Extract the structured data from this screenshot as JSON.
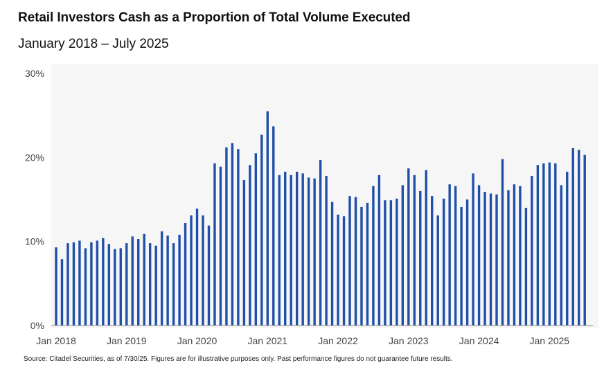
{
  "title": "Retail Investors Cash as a Proportion of Total Volume Executed",
  "subtitle": "January 2018 – July 2025",
  "source": "Source: Citadel Securities, as of 7/30/25. Figures are for illustrative purposes only. Past performance figures do not guarantee future results.",
  "colors": {
    "bar": "#1f4fa8",
    "plot_background": "#f6f6f6",
    "axis": "#888888",
    "tick_text": "#444444"
  },
  "chart_data": {
    "type": "bar",
    "xlabel": "",
    "ylabel": "",
    "ylim": [
      0,
      30
    ],
    "y_ticks": [
      0,
      10,
      20,
      30
    ],
    "y_tick_labels": [
      "0%",
      "10%",
      "20%",
      "30%"
    ],
    "x_tick_labels": [
      "Jan 2018",
      "Jan 2019",
      "Jan 2020",
      "Jan 2021",
      "Jan 2022",
      "Jan 2023",
      "Jan 2024",
      "Jan 2025"
    ],
    "grid": false,
    "legend": "none",
    "categories": [
      "2018-01",
      "2018-02",
      "2018-03",
      "2018-04",
      "2018-05",
      "2018-06",
      "2018-07",
      "2018-08",
      "2018-09",
      "2018-10",
      "2018-11",
      "2018-12",
      "2019-01",
      "2019-02",
      "2019-03",
      "2019-04",
      "2019-05",
      "2019-06",
      "2019-07",
      "2019-08",
      "2019-09",
      "2019-10",
      "2019-11",
      "2019-12",
      "2020-01",
      "2020-02",
      "2020-03",
      "2020-04",
      "2020-05",
      "2020-06",
      "2020-07",
      "2020-08",
      "2020-09",
      "2020-10",
      "2020-11",
      "2020-12",
      "2021-01",
      "2021-02",
      "2021-03",
      "2021-04",
      "2021-05",
      "2021-06",
      "2021-07",
      "2021-08",
      "2021-09",
      "2021-10",
      "2021-11",
      "2021-12",
      "2022-01",
      "2022-02",
      "2022-03",
      "2022-04",
      "2022-05",
      "2022-06",
      "2022-07",
      "2022-08",
      "2022-09",
      "2022-10",
      "2022-11",
      "2022-12",
      "2023-01",
      "2023-02",
      "2023-03",
      "2023-04",
      "2023-05",
      "2023-06",
      "2023-07",
      "2023-08",
      "2023-09",
      "2023-10",
      "2023-11",
      "2023-12",
      "2024-01",
      "2024-02",
      "2024-03",
      "2024-04",
      "2024-05",
      "2024-06",
      "2024-07",
      "2024-08",
      "2024-09",
      "2024-10",
      "2024-11",
      "2024-12",
      "2025-01",
      "2025-02",
      "2025-03",
      "2025-04",
      "2025-05",
      "2025-06",
      "2025-07"
    ],
    "values": [
      9.3,
      7.9,
      9.8,
      9.9,
      10.1,
      9.2,
      9.9,
      10.1,
      10.4,
      9.7,
      9.1,
      9.2,
      9.8,
      10.6,
      10.3,
      10.9,
      9.8,
      9.5,
      11.2,
      10.7,
      9.8,
      10.8,
      12.2,
      13.1,
      13.9,
      13.1,
      11.9,
      19.3,
      18.9,
      21.2,
      21.7,
      21.0,
      17.3,
      19.1,
      20.5,
      22.7,
      25.5,
      23.7,
      17.9,
      18.3,
      17.9,
      18.3,
      18.1,
      17.6,
      17.5,
      19.7,
      17.8,
      14.7,
      13.2,
      13.0,
      15.4,
      15.3,
      14.1,
      14.6,
      16.6,
      17.9,
      14.9,
      14.9,
      15.1,
      16.7,
      18.7,
      17.9,
      16.0,
      18.5,
      15.4,
      13.1,
      15.1,
      16.8,
      16.6,
      14.1,
      15.0,
      18.1,
      16.7,
      15.9,
      15.7,
      15.6,
      19.8,
      16.1,
      16.8,
      16.6,
      14.0,
      17.8,
      19.1,
      19.3,
      19.4,
      19.3,
      16.7,
      18.3,
      21.1,
      20.9,
      20.3
    ]
  }
}
